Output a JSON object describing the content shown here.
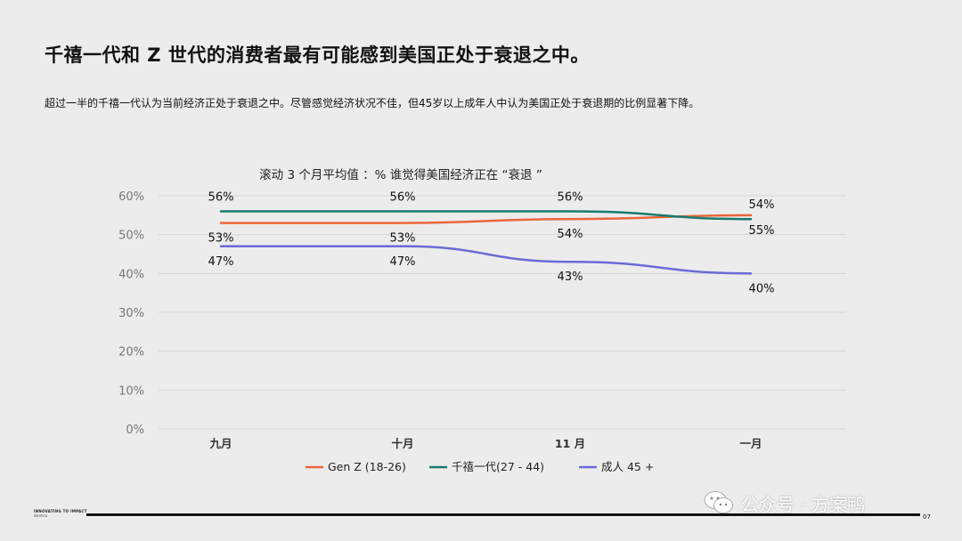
{
  "header": {
    "title": "千禧一代和 Z 世代的消费者最有可能感到美国正处于衰退之中。",
    "subtitle": "超过一半的千禧一代认为当前经济正处于衰退之中。尽管感觉经济状况不佳，但45岁以上成年人中认为美国正处于衰退期的比例显著下降。"
  },
  "chart_data": {
    "type": "line",
    "title": "滚动 3 个月平均值 ：% 谁觉得美国经济正在 “衰退 ”",
    "categories": [
      "九月",
      "十月",
      "11 月",
      "一月"
    ],
    "ylim": [
      0,
      60
    ],
    "yticks": [
      "0%",
      "10%",
      "20%",
      "30%",
      "40%",
      "50%",
      "60%"
    ],
    "ytick_values": [
      0,
      10,
      20,
      30,
      40,
      50,
      60
    ],
    "grid": true,
    "legend_position": "bottom",
    "series": [
      {
        "name": "Gen Z (18-26)",
        "color": "#e8673a",
        "values": [
          53,
          53,
          54,
          55
        ],
        "labels": [
          "53%",
          "53%",
          "54%",
          "55%"
        ],
        "label_side": [
          "below",
          "below",
          "below",
          "below"
        ]
      },
      {
        "name": "千禧一代(27 - 44)",
        "color": "#1a7a6e",
        "values": [
          56,
          56,
          56,
          54
        ],
        "labels": [
          "56%",
          "56%",
          "56%",
          "54%"
        ],
        "label_side": [
          "above",
          "above",
          "above",
          "above"
        ]
      },
      {
        "name": "成人 45 +",
        "color": "#6b6bd6",
        "values": [
          47,
          47,
          43,
          40
        ],
        "labels": [
          "47%",
          "47%",
          "43%",
          "40%"
        ],
        "label_side": [
          "below",
          "below",
          "below",
          "below"
        ]
      }
    ]
  },
  "footer": {
    "brand_line1": "INNOVATING TO IMPACT",
    "brand_line2": "dentsu",
    "page_number": "07"
  },
  "watermark": {
    "text": "公众号 · 方案鸭",
    "icon": "wechat-icon"
  }
}
